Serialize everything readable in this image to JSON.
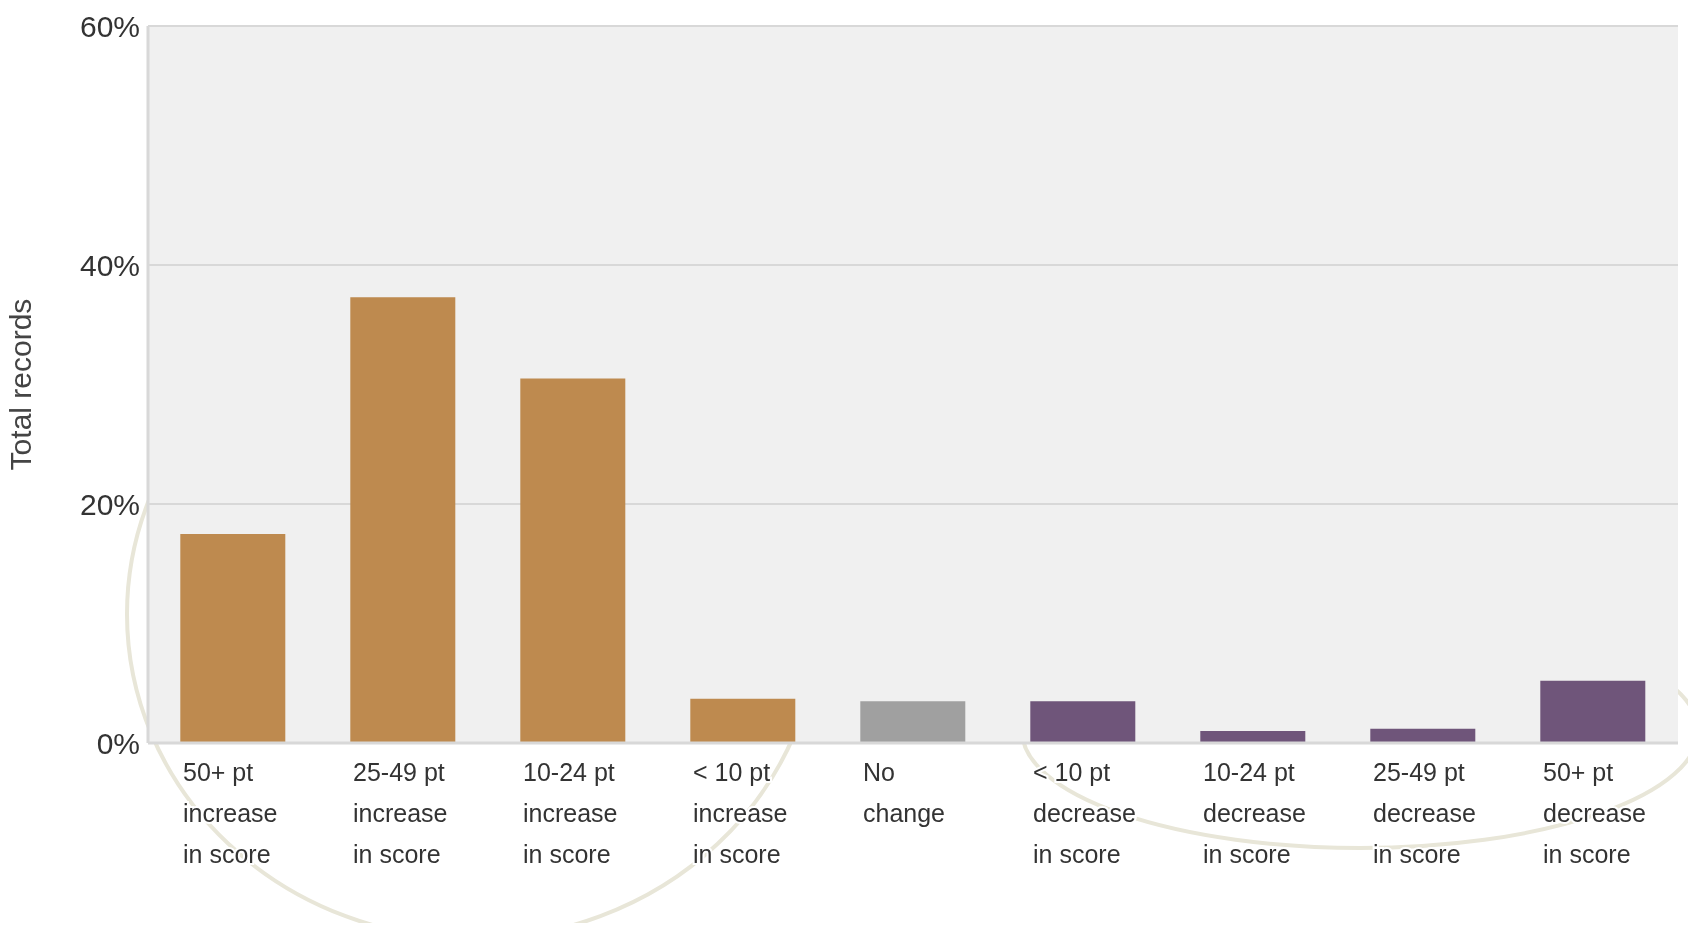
{
  "chart_data": {
    "type": "bar",
    "ylabel": "Total records",
    "categories": [
      "50+ pt increase in score",
      "25-49 pt increase in score",
      "10-24 pt increase in score",
      "< 10 pt increase in score",
      "No change",
      "< 10 pt decrease in score",
      "10-24 pt decrease in score",
      "25-49 pt decrease in score",
      "50+ pt decrease in score"
    ],
    "values": [
      17.5,
      37.3,
      30.5,
      3.7,
      3.5,
      3.5,
      1.0,
      1.2,
      5.2
    ],
    "colors": [
      "#be8a4f",
      "#be8a4f",
      "#be8a4f",
      "#be8a4f",
      "#a0a0a0",
      "#6f557a",
      "#6f557a",
      "#6f557a",
      "#6f557a"
    ],
    "ylim": [
      0,
      60
    ],
    "yticks": [
      {
        "value": 0,
        "label": "0%"
      },
      {
        "value": 20,
        "label": "20%"
      },
      {
        "value": 40,
        "label": "40%"
      },
      {
        "value": 60,
        "label": "60%"
      }
    ],
    "grid": "y"
  }
}
